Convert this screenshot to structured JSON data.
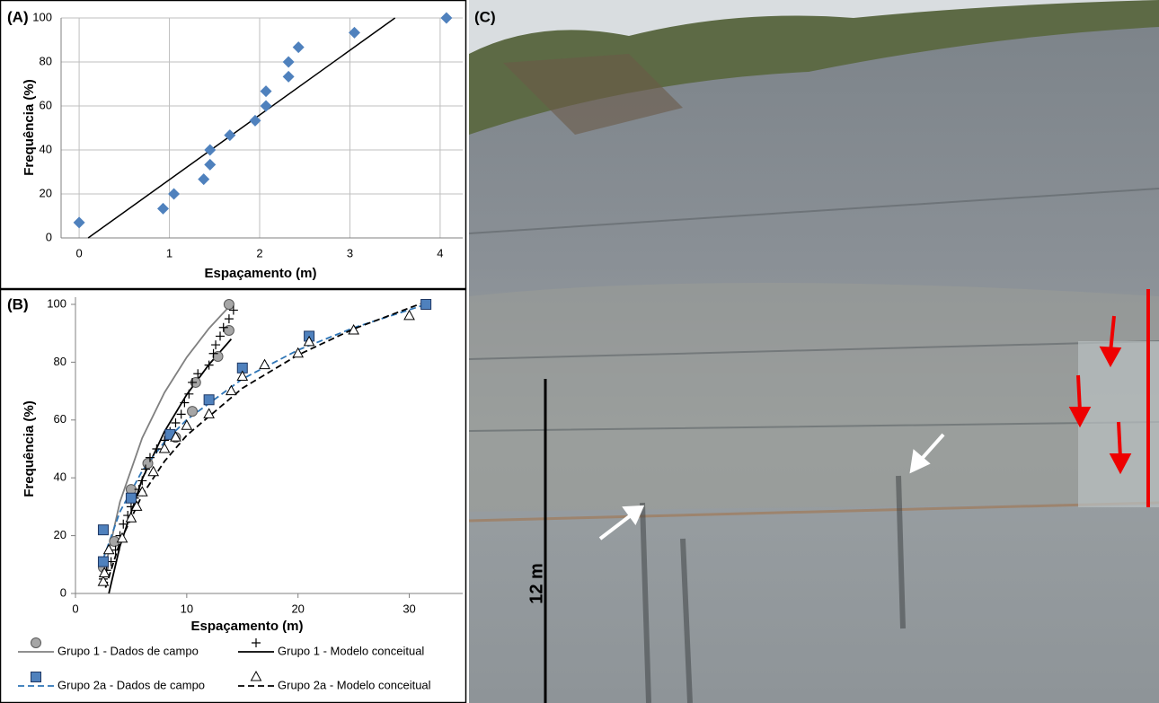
{
  "chart_data": [
    {
      "type": "scatter",
      "panel_label": "(A)",
      "xlabel": "Espaçamento (m)",
      "ylabel": "Frequência (%)",
      "xlim": [
        -0.2,
        4.25
      ],
      "ylim": [
        0,
        100
      ],
      "xticks": [
        0,
        1,
        2,
        3,
        4
      ],
      "yticks": [
        0,
        20,
        40,
        60,
        80,
        100
      ],
      "grid": true,
      "series": [
        {
          "color": "#4f81bd",
          "marker": "diamond",
          "x": [
            0,
            0.93,
            1.05,
            1.38,
            1.45,
            1.45,
            1.67,
            1.95,
            2.07,
            2.07,
            2.32,
            2.32,
            2.43,
            3.05,
            4.07
          ],
          "values": [
            7,
            13.3,
            20,
            26.7,
            33.3,
            40,
            46.7,
            53.3,
            60,
            66.7,
            73.3,
            80,
            86.7,
            93.3,
            100
          ]
        },
        {
          "color": "#000000",
          "marker": "none",
          "line": "solid",
          "x": [
            0.1,
            3.5
          ],
          "values": [
            0,
            100
          ]
        }
      ]
    },
    {
      "type": "scatter",
      "panel_label": "(B)",
      "xlabel": "Espaçamento (m)",
      "ylabel": "Frequência (%)",
      "xlim": [
        0,
        34.8
      ],
      "ylim": [
        0,
        100
      ],
      "xticks": [
        0,
        10,
        20,
        30
      ],
      "yticks": [
        0,
        20,
        40,
        60,
        80,
        100
      ],
      "grid": false,
      "series": [
        {
          "name": "Grupo 1 - Dados de campo",
          "color": "#a6a6a6",
          "marker": "circle",
          "x": [
            2.5,
            3.5,
            5,
            6.5,
            9,
            10.5,
            10.8,
            12.8,
            13.8,
            13.8
          ],
          "values": [
            9,
            18,
            36,
            45,
            54,
            63,
            73,
            82,
            91,
            100
          ],
          "fit": {
            "color": "#808080",
            "line": "solid",
            "x": [
              2.5,
              4,
              6,
              8,
              10,
              12,
              14
            ],
            "values": [
              6,
              31.7,
              53.8,
              69.5,
              81.7,
              91.7,
              100
            ]
          }
        },
        {
          "name": "Grupo 1 - Modelo conceitual",
          "color": "#000000",
          "marker": "plus",
          "x": [
            2.5,
            2.8,
            3.2,
            3.6,
            4,
            4.3,
            4.7,
            5,
            5.3,
            5.7,
            6,
            6.3,
            6.7,
            7.3,
            8,
            8.5,
            9,
            9.5,
            9.8,
            10.2,
            10.5,
            11,
            12,
            12.4,
            12.6,
            13,
            13.3,
            13.8,
            14.2
          ],
          "values": [
            5,
            8,
            11,
            15,
            20,
            24,
            27,
            30,
            33,
            36,
            39,
            43,
            47,
            50,
            53,
            56,
            59,
            62,
            66,
            69,
            73,
            76,
            79,
            83,
            86,
            89,
            92,
            95,
            98
          ],
          "fit": {
            "color": "#000000",
            "line": "solid",
            "x": [
              3,
              4,
              6,
              8,
              10,
              12,
              14
            ],
            "values": [
              0,
              16.4,
              39.6,
              56,
              68.8,
              79.2,
              88
            ]
          }
        },
        {
          "name": "Grupo 2a - Dados de campo",
          "color": "#4f81bd",
          "marker": "square",
          "x": [
            2.5,
            2.5,
            5,
            8.5,
            12,
            15,
            21,
            31.5
          ],
          "values": [
            11,
            22,
            33,
            55,
            67,
            78,
            89,
            100
          ],
          "fit": {
            "color": "#2e75b6",
            "line": "dashed",
            "x": [
              2.5,
              4,
              6,
              8,
              10,
              15,
              20,
              25,
              31.5
            ],
            "values": [
              12,
              28.3,
              42.4,
              52.4,
              60.1,
              74.2,
              84.2,
              91.9,
              100
            ]
          }
        },
        {
          "name": "Grupo 2a - Modelo conceitual",
          "color": "#000000",
          "marker": "triangle",
          "x": [
            2.5,
            2.6,
            3,
            4.2,
            5,
            5.5,
            6,
            7,
            8,
            9,
            10,
            12,
            14,
            15,
            17,
            20,
            21,
            25,
            30
          ],
          "values": [
            4,
            7,
            15,
            19,
            26,
            30,
            35,
            42,
            50,
            54,
            58,
            62,
            70,
            75,
            79,
            83,
            87,
            91,
            96
          ],
          "fit": {
            "color": "#000000",
            "line": "dashed",
            "x": [
              2.7,
              4,
              6,
              8,
              10,
              15,
              20,
              25,
              31
            ],
            "values": [
              2,
              17.8,
              34.1,
              45.7,
              54.7,
              71,
              82.5,
              91.5,
              100.2
            ]
          }
        }
      ]
    }
  ],
  "photo": {
    "panel_label": "(C)",
    "scale_label": "12 m"
  }
}
